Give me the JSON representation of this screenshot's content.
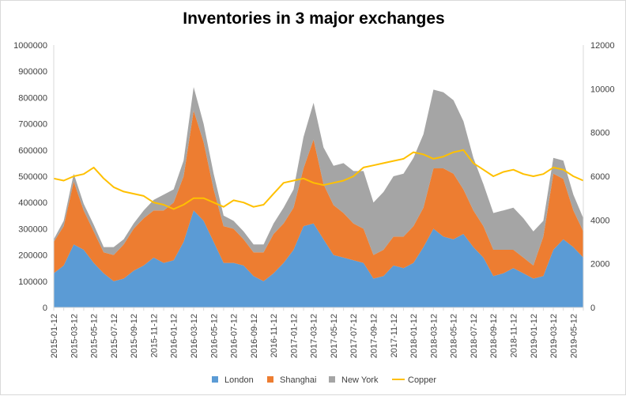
{
  "chart_data": {
    "type": "area",
    "title": "Inventories in 3 major exchanges",
    "xlabel": "",
    "ylabel": "",
    "y_left_ticks": [
      "0",
      "100000",
      "200000",
      "300000",
      "400000",
      "500000",
      "600000",
      "700000",
      "800000",
      "900000",
      "1000000"
    ],
    "y_right_ticks": [
      "0",
      "2000",
      "4000",
      "6000",
      "8000",
      "10000",
      "12000"
    ],
    "ylim_left": [
      0,
      1000000
    ],
    "ylim_right": [
      0,
      12000
    ],
    "grid": false,
    "legend_position": "bottom",
    "x_tick_labels": [
      "2015-01-12",
      "2015-03-12",
      "2015-05-12",
      "2015-07-12",
      "2015-09-12",
      "2015-11-12",
      "2016-01-12",
      "2016-03-12",
      "2016-05-12",
      "2016-07-12",
      "2016-09-12",
      "2016-11-12",
      "2017-01-12",
      "2017-03-12",
      "2017-05-12",
      "2017-07-12",
      "2017-09-12",
      "2017-11-12",
      "2018-01-12",
      "2018-03-12",
      "2018-05-12",
      "2018-07-12",
      "2018-09-12",
      "2018-11-12",
      "2019-01-12",
      "2019-03-12",
      "2019-05-12"
    ],
    "x": [
      "2015-01-12",
      "2015-02-12",
      "2015-03-12",
      "2015-04-12",
      "2015-05-12",
      "2015-06-12",
      "2015-07-12",
      "2015-08-12",
      "2015-09-12",
      "2015-10-12",
      "2015-11-12",
      "2015-12-12",
      "2016-01-12",
      "2016-02-12",
      "2016-03-12",
      "2016-04-12",
      "2016-05-12",
      "2016-06-12",
      "2016-07-12",
      "2016-08-12",
      "2016-09-12",
      "2016-10-12",
      "2016-11-12",
      "2016-12-12",
      "2017-01-12",
      "2017-02-12",
      "2017-03-12",
      "2017-04-12",
      "2017-05-12",
      "2017-06-12",
      "2017-07-12",
      "2017-08-12",
      "2017-09-12",
      "2017-10-12",
      "2017-11-12",
      "2017-12-12",
      "2018-01-12",
      "2018-02-12",
      "2018-03-12",
      "2018-04-12",
      "2018-05-12",
      "2018-06-12",
      "2018-07-12",
      "2018-08-12",
      "2018-09-12",
      "2018-10-12",
      "2018-11-12",
      "2018-12-12",
      "2019-01-12",
      "2019-02-12",
      "2019-03-12",
      "2019-04-12",
      "2019-05-12",
      "2019-06-12"
    ],
    "series": [
      {
        "name": "London",
        "type": "area",
        "axis": "left",
        "color": "#5b9bd5",
        "values": [
          130000,
          160000,
          240000,
          220000,
          170000,
          130000,
          100000,
          110000,
          140000,
          160000,
          190000,
          170000,
          180000,
          250000,
          370000,
          330000,
          250000,
          170000,
          170000,
          160000,
          120000,
          100000,
          130000,
          170000,
          220000,
          310000,
          320000,
          260000,
          200000,
          190000,
          180000,
          170000,
          110000,
          120000,
          160000,
          150000,
          170000,
          230000,
          300000,
          270000,
          260000,
          280000,
          230000,
          190000,
          120000,
          130000,
          150000,
          130000,
          110000,
          120000,
          220000,
          260000,
          230000,
          190000
        ]
      },
      {
        "name": "Shanghai",
        "type": "area",
        "axis": "left",
        "color": "#ed7d31",
        "values": [
          120000,
          150000,
          240000,
          150000,
          120000,
          80000,
          100000,
          130000,
          160000,
          180000,
          180000,
          200000,
          220000,
          250000,
          380000,
          300000,
          200000,
          140000,
          130000,
          100000,
          90000,
          110000,
          150000,
          150000,
          160000,
          220000,
          320000,
          210000,
          190000,
          170000,
          140000,
          130000,
          90000,
          100000,
          110000,
          120000,
          140000,
          150000,
          230000,
          260000,
          250000,
          170000,
          140000,
          120000,
          100000,
          90000,
          70000,
          60000,
          50000,
          150000,
          290000,
          230000,
          140000,
          100000
        ]
      },
      {
        "name": "New York",
        "type": "area",
        "axis": "left",
        "color": "#a5a5a5",
        "values": [
          10000,
          20000,
          30000,
          25000,
          25000,
          20000,
          30000,
          20000,
          20000,
          30000,
          40000,
          60000,
          50000,
          60000,
          90000,
          70000,
          60000,
          40000,
          30000,
          30000,
          30000,
          30000,
          40000,
          60000,
          70000,
          120000,
          140000,
          140000,
          150000,
          190000,
          200000,
          220000,
          200000,
          220000,
          230000,
          240000,
          260000,
          280000,
          300000,
          290000,
          280000,
          260000,
          200000,
          160000,
          140000,
          150000,
          160000,
          150000,
          130000,
          60000,
          60000,
          70000,
          60000,
          50000
        ]
      },
      {
        "name": "Copper",
        "type": "line",
        "axis": "right",
        "color": "#ffc000",
        "values": [
          5900,
          5800,
          6000,
          6100,
          6400,
          5900,
          5500,
          5300,
          5200,
          5100,
          4800,
          4700,
          4500,
          4700,
          5000,
          5000,
          4800,
          4600,
          4900,
          4800,
          4600,
          4700,
          5200,
          5700,
          5800,
          5900,
          5700,
          5600,
          5700,
          5800,
          6000,
          6400,
          6500,
          6600,
          6700,
          6800,
          7100,
          7000,
          6800,
          6900,
          7100,
          7200,
          6600,
          6300,
          6000,
          6200,
          6300,
          6100,
          6000,
          6100,
          6400,
          6300,
          6000,
          5800
        ]
      }
    ]
  }
}
